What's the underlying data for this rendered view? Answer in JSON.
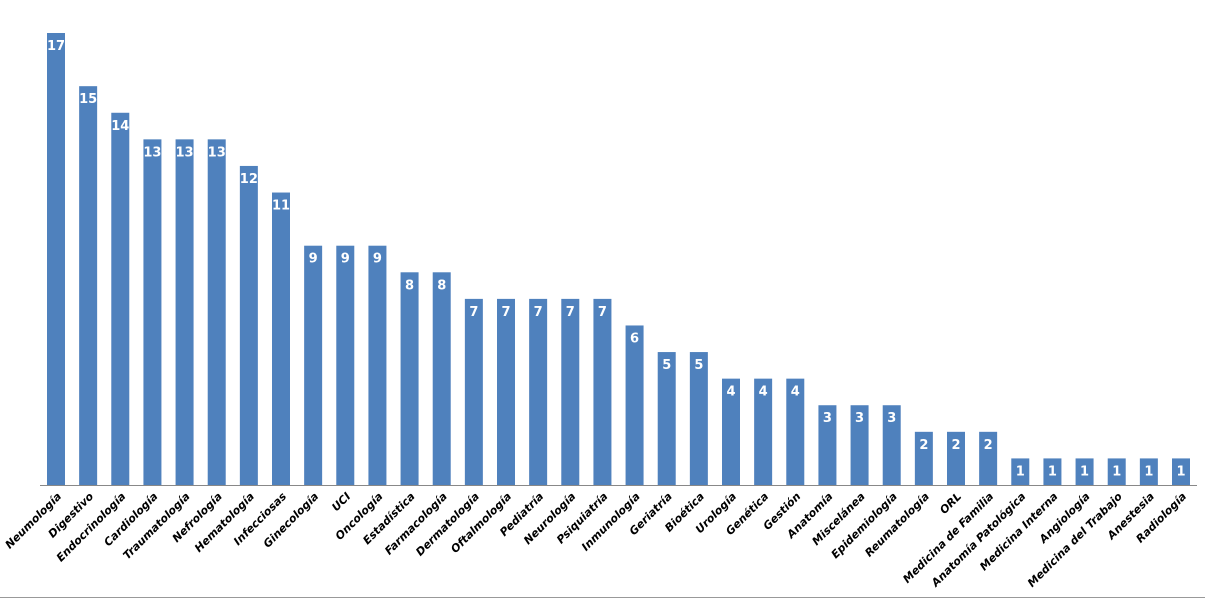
{
  "chart_data": {
    "type": "bar",
    "title": "",
    "xlabel": "",
    "ylabel": "",
    "ylim": [
      0,
      17
    ],
    "grid": false,
    "legend": "none",
    "bar_color": "#4F81BD",
    "label_color": "#FFFFFF",
    "data_labels": "inside-top",
    "categories": [
      "Neumología",
      "Digestivo",
      "Endocrinología",
      "Cardiología",
      "Traumatología",
      "Nefrología",
      "Hematología",
      "Infecciosas",
      "Ginecología",
      "UCI",
      "Oncología",
      "Estadística",
      "Farmacología",
      "Dermatología",
      "Oftalmología",
      "Pediatría",
      "Neurología",
      "Psiquiatría",
      "Inmunología",
      "Geriatría",
      "Bioética",
      "Urología",
      "Genética",
      "Gestión",
      "Anatomía",
      "Miscelánea",
      "Epidemiología",
      "Reumatología",
      "ORL",
      "Medicina de Familia",
      "Anatomía Patológica",
      "Medicina Interna",
      "Angiología",
      "Medicina del Trabajo",
      "Anestesia",
      "Radiología"
    ],
    "values": [
      17,
      15,
      14,
      13,
      13,
      13,
      12,
      11,
      9,
      9,
      9,
      8,
      8,
      7,
      7,
      7,
      7,
      7,
      6,
      5,
      5,
      4,
      4,
      4,
      3,
      3,
      3,
      2,
      2,
      2,
      1,
      1,
      1,
      1,
      1,
      1
    ]
  }
}
